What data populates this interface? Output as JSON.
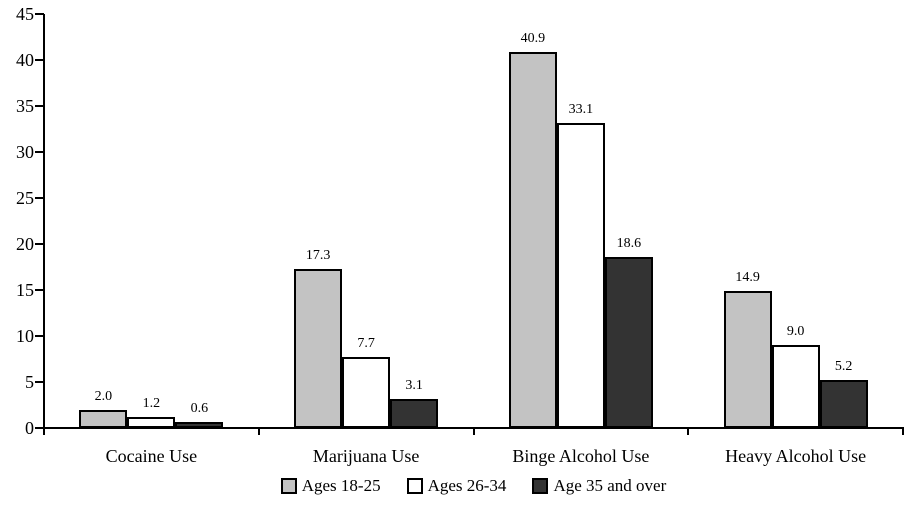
{
  "chart_data": {
    "type": "bar",
    "title": "",
    "xlabel": "",
    "ylabel": "",
    "categories": [
      "Cocaine Use",
      "Marijuana Use",
      "Binge Alcohol Use",
      "Heavy Alcohol Use"
    ],
    "series": [
      {
        "name": "Ages 18-25",
        "color": "#c3c3c3",
        "values": [
          2.0,
          17.3,
          40.9,
          14.9
        ]
      },
      {
        "name": "Ages 26-34",
        "color": "#ffffff",
        "values": [
          1.2,
          7.7,
          33.1,
          9.0
        ]
      },
      {
        "name": "Age 35 and over",
        "color": "#333333",
        "values": [
          0.6,
          3.1,
          18.6,
          5.2
        ]
      }
    ],
    "value_labels": [
      [
        "2.0",
        "17.3",
        "40.9",
        "14.9"
      ],
      [
        "1.2",
        "7.7",
        "33.1",
        "9.0"
      ],
      [
        "0.6",
        "3.1",
        "18.6",
        "5.2"
      ]
    ],
    "ylim": [
      0,
      45
    ],
    "yticks": [
      0,
      5,
      10,
      15,
      20,
      25,
      30,
      35,
      40,
      45
    ],
    "bar_border_color": "#000000",
    "axis_color": "#000000",
    "grid": false,
    "legend_position": "bottom"
  }
}
